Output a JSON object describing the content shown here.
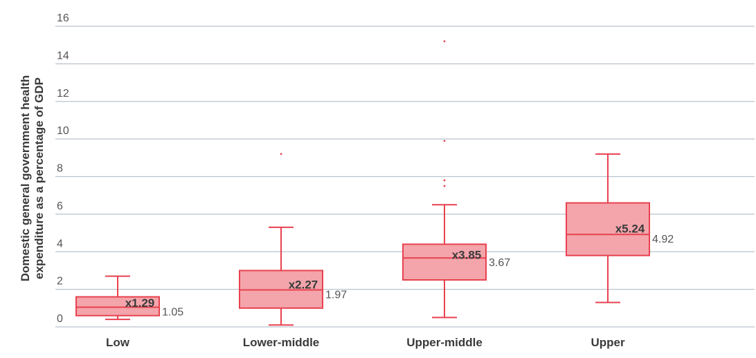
{
  "chart_data": {
    "type": "box",
    "categories": [
      "Low",
      "Lower-middle",
      "Upper-middle",
      "Upper"
    ],
    "ylabel_lines": [
      "Domestic general government health",
      "expenditure as a percentage of GDP"
    ],
    "ylim": [
      0,
      16
    ],
    "yticks": [
      0,
      2,
      4,
      6,
      8,
      10,
      12,
      14,
      16
    ],
    "grid": true,
    "color": "#e8414f",
    "fill": "#f3a5ab",
    "boxes": [
      {
        "category": "Low",
        "min": 0.4,
        "q1": 0.6,
        "median": 1.05,
        "q3": 1.6,
        "max": 2.7,
        "mean": 1.29,
        "mean_label": "x1.29",
        "median_label": "1.05",
        "outliers": []
      },
      {
        "category": "Lower-middle",
        "min": 0.1,
        "q1": 1.0,
        "median": 1.97,
        "q3": 3.0,
        "max": 5.3,
        "mean": 2.27,
        "mean_label": "x2.27",
        "median_label": "1.97",
        "outliers": [
          9.2
        ]
      },
      {
        "category": "Upper-middle",
        "min": 0.5,
        "q1": 2.5,
        "median": 3.67,
        "q3": 4.4,
        "max": 6.5,
        "mean": 3.85,
        "mean_label": "x3.85",
        "median_label": "3.67",
        "outliers": [
          7.5,
          7.8,
          9.9,
          15.2
        ]
      },
      {
        "category": "Upper",
        "min": 1.3,
        "q1": 3.8,
        "median": 4.92,
        "q3": 6.6,
        "max": 9.2,
        "mean": 5.24,
        "mean_label": "x5.24",
        "median_label": "4.92",
        "outliers": []
      }
    ]
  }
}
